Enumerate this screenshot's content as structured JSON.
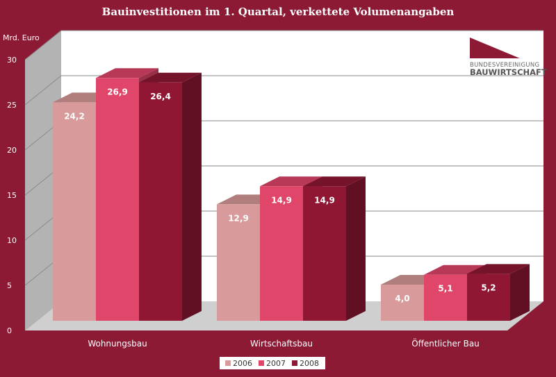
{
  "chart_data": {
    "type": "bar",
    "title": "Bauinvestitionen im 1. Quartal, verkettete Volumenangaben",
    "ylabel": "Mrd. Euro",
    "xlabel": "",
    "categories": [
      "Wohnungsbau",
      "Wirtschaftsbau",
      "Öffentlicher Bau"
    ],
    "series": [
      {
        "name": "2006",
        "values": [
          24.2,
          12.9,
          4.0
        ],
        "labels": [
          "24,2",
          "12,9",
          "4,0"
        ],
        "color": "#d89a9a"
      },
      {
        "name": "2007",
        "values": [
          26.9,
          14.9,
          5.1
        ],
        "labels": [
          "26,9",
          "14,9",
          "5,1"
        ],
        "color": "#e0466a"
      },
      {
        "name": "2008",
        "values": [
          26.4,
          14.9,
          5.2
        ],
        "labels": [
          "26,4",
          "14,9",
          "5,2"
        ],
        "color": "#8f1734"
      }
    ],
    "ylim": [
      0,
      30
    ],
    "yticks": [
      "0",
      "5",
      "10",
      "15",
      "20",
      "25",
      "30"
    ],
    "grid": true,
    "legend": "bottom-center",
    "three_d": true
  },
  "logo": {
    "line1": "BUNDESVEREINIGUNG",
    "line2": "BAUWIRTSCHAFT",
    "color": "#8c1a34"
  },
  "colors": {
    "background": "#8c1a34",
    "plot_back": "#ffffff",
    "plot_side": "#b3b3b3",
    "plot_floor": "#cfcfcf"
  }
}
